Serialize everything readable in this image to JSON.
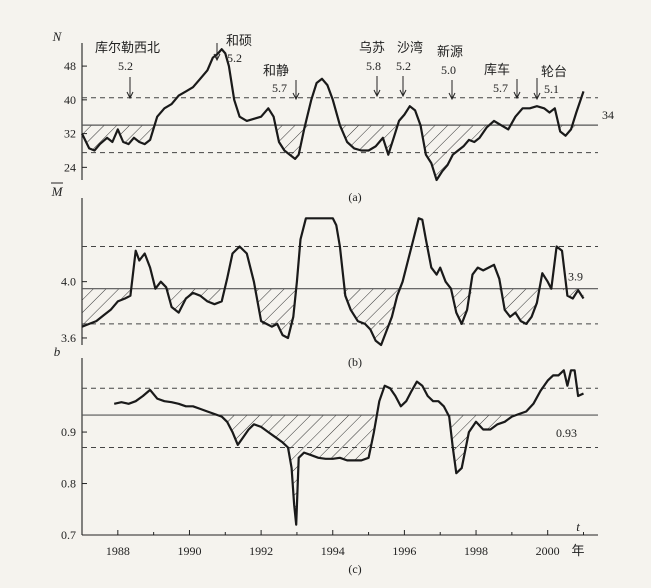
{
  "chart_data": [
    {
      "type": "line",
      "ylabel": "N",
      "panel_label": "(a)",
      "ylim": [
        21,
        53
      ],
      "yticks": [
        24,
        32,
        40,
        48
      ],
      "reference_value_label": "34",
      "reference": 34,
      "bounds": [
        27.5,
        40.5
      ],
      "hatched_below_reference": true,
      "series": [
        {
          "x": [
            1987.0,
            1987.2,
            1987.35,
            1987.5,
            1987.7,
            1987.85,
            1988.0,
            1988.15,
            1988.3,
            1988.45,
            1988.6,
            1988.75,
            1988.9,
            1989.1,
            1989.3,
            1989.5,
            1989.7,
            1989.9,
            1990.1,
            1990.3,
            1990.5,
            1990.65,
            1990.8,
            1990.9,
            1991.0,
            1991.1,
            1991.25,
            1991.4,
            1991.6,
            1991.8,
            1992.0,
            1992.2,
            1992.35,
            1992.5,
            1992.65,
            1992.8,
            1992.95,
            1993.05,
            1993.2,
            1993.4,
            1993.55,
            1993.7,
            1993.85,
            1994.0,
            1994.2,
            1994.4,
            1994.6,
            1994.8,
            1995.0,
            1995.2,
            1995.4,
            1995.55,
            1995.7,
            1995.85,
            1996.0,
            1996.15,
            1996.3,
            1996.45,
            1996.6,
            1996.75,
            1996.9,
            1997.05,
            1997.2,
            1997.35,
            1997.5,
            1997.65,
            1997.8,
            1997.95,
            1998.1,
            1998.3,
            1998.5,
            1998.7,
            1998.9,
            1999.1,
            1999.3,
            1999.5,
            1999.7,
            1999.9,
            2000.05,
            2000.2,
            2000.35,
            2000.5,
            2000.65,
            2000.8,
            2001.0
          ],
          "y": [
            32,
            28.5,
            28,
            29.5,
            31,
            30,
            33,
            30,
            29.5,
            31,
            30,
            29.5,
            30.5,
            36,
            38,
            39,
            41,
            42,
            43,
            45,
            47,
            50,
            51,
            52,
            51,
            48,
            40,
            36,
            35,
            35.5,
            36,
            38,
            36,
            30,
            28,
            27,
            26,
            27,
            33,
            40,
            44,
            45,
            43.5,
            40,
            34,
            30,
            28.5,
            28,
            28,
            29,
            31,
            27,
            31,
            35,
            36.5,
            38.5,
            37.5,
            34,
            27,
            25,
            21,
            23,
            24.5,
            27,
            28,
            29,
            30.5,
            30,
            31,
            33.5,
            35,
            34,
            33,
            36,
            38,
            38,
            38.5,
            38,
            37,
            38,
            32.5,
            31.5,
            33,
            37,
            42
          ]
        }
      ],
      "annotations": [
        {
          "name": "库尔勒西北",
          "magnitude": "5.2",
          "x": 1988.5
        },
        {
          "name": "和硕",
          "magnitude": "5.2",
          "x": 1991.0
        },
        {
          "name": "和静",
          "magnitude": "5.7",
          "x": 1992.9
        },
        {
          "name": "乌苏",
          "magnitude": "5.8",
          "x": 1995.6
        },
        {
          "name": "沙湾",
          "magnitude": "5.2",
          "x": 1996.3
        },
        {
          "name": "新源",
          "magnitude": "5.0",
          "x": 1997.8
        },
        {
          "name": "库车",
          "magnitude": "5.7",
          "x": 1999.3
        },
        {
          "name": "轮台",
          "magnitude": "5.1",
          "x": 2000.3
        }
      ]
    },
    {
      "type": "line",
      "ylabel": "M",
      "panel_label": "(b)",
      "ylim": [
        3.55,
        4.58
      ],
      "yticks": [
        3.6,
        4.0
      ],
      "reference_value_label": "3.9",
      "reference": 3.95,
      "bounds": [
        3.7,
        4.25
      ],
      "hatched_below_reference": true,
      "series": [
        {
          "x": [
            1987.0,
            1987.2,
            1987.4,
            1987.6,
            1987.8,
            1988.0,
            1988.2,
            1988.35,
            1988.5,
            1988.6,
            1988.75,
            1988.9,
            1989.05,
            1989.2,
            1989.35,
            1989.5,
            1989.7,
            1989.9,
            1990.1,
            1990.3,
            1990.5,
            1990.7,
            1990.9,
            1991.05,
            1991.2,
            1991.4,
            1991.6,
            1991.8,
            1992.0,
            1992.15,
            1992.3,
            1992.45,
            1992.6,
            1992.75,
            1992.9,
            1993.0,
            1993.1,
            1993.25,
            1993.4,
            1993.6,
            1993.8,
            1994.0,
            1994.1,
            1994.2,
            1994.35,
            1994.5,
            1994.7,
            1994.9,
            1995.05,
            1995.2,
            1995.35,
            1995.5,
            1995.65,
            1995.8,
            1995.95,
            1996.1,
            1996.25,
            1996.4,
            1996.5,
            1996.6,
            1996.75,
            1996.9,
            1997.0,
            1997.15,
            1997.3,
            1997.45,
            1997.6,
            1997.75,
            1997.9,
            1998.05,
            1998.2,
            1998.35,
            1998.5,
            1998.65,
            1998.8,
            1998.95,
            1999.1,
            1999.25,
            1999.4,
            1999.55,
            1999.7,
            1999.85,
            2000.0,
            2000.1,
            2000.25,
            2000.4,
            2000.55,
            2000.7,
            2000.85,
            2001.0
          ],
          "y": [
            3.68,
            3.7,
            3.72,
            3.76,
            3.8,
            3.86,
            3.88,
            3.9,
            4.22,
            4.15,
            4.2,
            4.1,
            3.95,
            4.0,
            3.96,
            3.82,
            3.78,
            3.88,
            3.92,
            3.9,
            3.86,
            3.84,
            3.86,
            4.02,
            4.2,
            4.25,
            4.2,
            4.0,
            3.72,
            3.7,
            3.68,
            3.7,
            3.62,
            3.6,
            3.75,
            4.0,
            4.3,
            4.45,
            4.45,
            4.45,
            4.45,
            4.45,
            4.4,
            4.25,
            3.9,
            3.8,
            3.72,
            3.7,
            3.66,
            3.58,
            3.55,
            3.65,
            3.75,
            3.9,
            4.0,
            4.15,
            4.3,
            4.45,
            4.44,
            4.3,
            4.1,
            4.05,
            4.1,
            4.0,
            3.95,
            3.78,
            3.7,
            3.8,
            4.05,
            4.1,
            4.08,
            4.1,
            4.12,
            4.02,
            3.8,
            3.75,
            3.78,
            3.72,
            3.7,
            3.75,
            3.85,
            4.06,
            4.0,
            3.95,
            4.25,
            4.22,
            3.9,
            3.88,
            3.94,
            3.88
          ]
        }
      ]
    },
    {
      "type": "line",
      "ylabel": "b",
      "panel_label": "(c)",
      "xlabel": "t",
      "x_unit": "年",
      "ylim": [
        0.7,
        1.04
      ],
      "yticks": [
        0.7,
        0.8,
        0.9
      ],
      "xticks": [
        1988,
        1990,
        1992,
        1994,
        1996,
        1998,
        2000
      ],
      "xlim": [
        1987.0,
        2001.6
      ],
      "reference_value_label": "0.93",
      "reference": 0.933,
      "bounds": [
        0.87,
        0.985
      ],
      "hatched_below_reference": true,
      "series": [
        {
          "x": [
            1987.9,
            1988.1,
            1988.3,
            1988.5,
            1988.7,
            1988.9,
            1989.1,
            1989.3,
            1989.5,
            1989.7,
            1989.9,
            1990.1,
            1990.3,
            1990.5,
            1990.7,
            1990.9,
            1991.05,
            1991.2,
            1991.35,
            1991.5,
            1991.65,
            1991.8,
            1992.0,
            1992.2,
            1992.4,
            1992.6,
            1992.75,
            1992.85,
            1992.92,
            1992.98,
            1993.05,
            1993.2,
            1993.4,
            1993.6,
            1993.8,
            1994.0,
            1994.2,
            1994.4,
            1994.6,
            1994.8,
            1995.0,
            1995.15,
            1995.3,
            1995.45,
            1995.6,
            1995.75,
            1995.9,
            1996.05,
            1996.2,
            1996.35,
            1996.5,
            1996.65,
            1996.8,
            1996.95,
            1997.1,
            1997.25,
            1997.35,
            1997.45,
            1997.6,
            1997.8,
            1998.0,
            1998.2,
            1998.4,
            1998.6,
            1998.8,
            1999.0,
            1999.2,
            1999.4,
            1999.6,
            1999.8,
            2000.0,
            2000.15,
            2000.3,
            2000.45,
            2000.55,
            2000.65,
            2000.75,
            2000.85,
            2001.0
          ],
          "y": [
            0.955,
            0.958,
            0.955,
            0.96,
            0.97,
            0.982,
            0.965,
            0.96,
            0.958,
            0.955,
            0.95,
            0.95,
            0.945,
            0.94,
            0.935,
            0.93,
            0.92,
            0.9,
            0.875,
            0.89,
            0.905,
            0.915,
            0.91,
            0.9,
            0.89,
            0.88,
            0.87,
            0.83,
            0.76,
            0.72,
            0.85,
            0.86,
            0.855,
            0.85,
            0.848,
            0.848,
            0.85,
            0.845,
            0.845,
            0.845,
            0.85,
            0.9,
            0.96,
            0.99,
            0.985,
            0.97,
            0.95,
            0.96,
            0.98,
            0.998,
            0.99,
            0.97,
            0.96,
            0.96,
            0.95,
            0.93,
            0.87,
            0.82,
            0.83,
            0.9,
            0.92,
            0.905,
            0.905,
            0.915,
            0.92,
            0.93,
            0.935,
            0.94,
            0.955,
            0.98,
            1.0,
            1.01,
            1.01,
            1.02,
            0.99,
            1.02,
            1.02,
            0.97,
            0.975
          ]
        }
      ]
    }
  ]
}
